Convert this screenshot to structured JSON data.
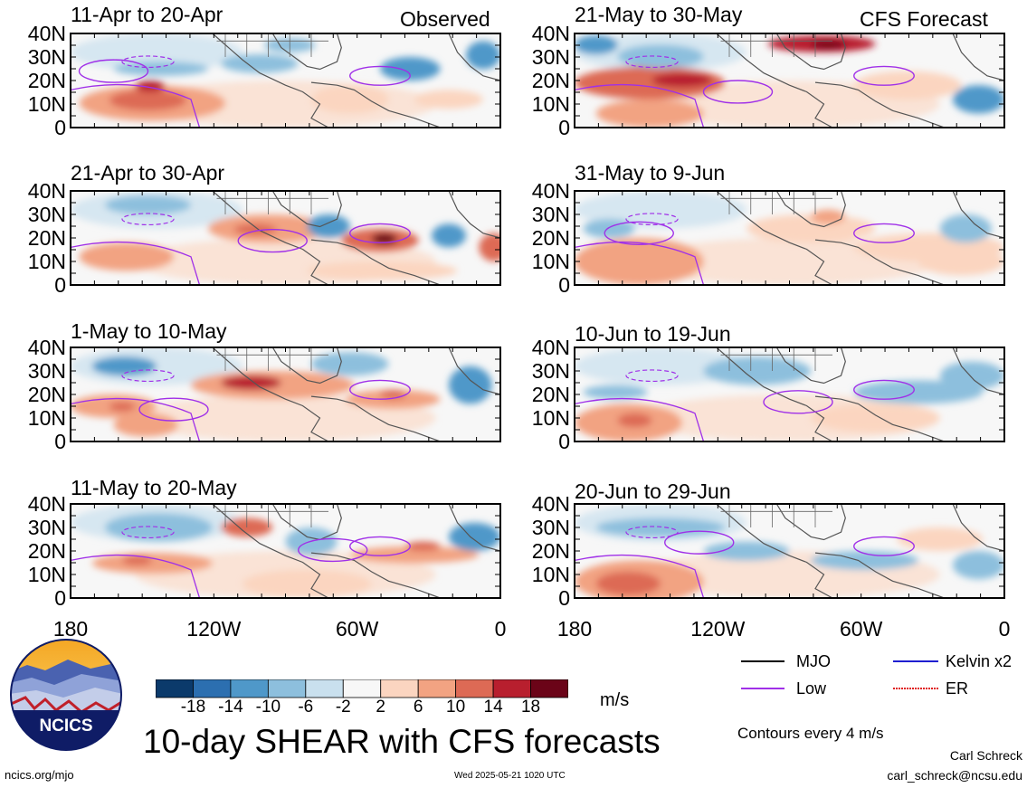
{
  "main_title": "10-day SHEAR with CFS forecasts",
  "column_labels": {
    "observed": "Observed",
    "forecast": "CFS Forecast"
  },
  "panels_observed": [
    {
      "title": "11-Apr to 20-Apr"
    },
    {
      "title": "21-Apr to 30-Apr"
    },
    {
      "title": "1-May to 10-May"
    },
    {
      "title": "11-May to 20-May"
    }
  ],
  "panels_forecast": [
    {
      "title": "21-May to 30-May"
    },
    {
      "title": "31-May to 9-Jun"
    },
    {
      "title": "10-Jun to 19-Jun"
    },
    {
      "title": "20-Jun to 29-Jun"
    }
  ],
  "y_ticks": [
    "40N",
    "30N",
    "20N",
    "10N",
    "0"
  ],
  "x_ticks": [
    "180",
    "120W",
    "60W",
    "0"
  ],
  "colorbar": {
    "labels": [
      "-18",
      "-14",
      "-10",
      "-6",
      "-2",
      "2",
      "6",
      "10",
      "14",
      "18"
    ],
    "unit": "m/s",
    "colors": [
      "#0b3a6b",
      "#2c6fb0",
      "#4f98c9",
      "#8dbfdd",
      "#c9e0ee",
      "#f7f7f7",
      "#fbd5c0",
      "#f2a382",
      "#dd6a55",
      "#b81f2e",
      "#6b0418"
    ]
  },
  "legend": {
    "mjo": "MJO",
    "kelvin": "Kelvin x2",
    "low": "Low",
    "er": "ER",
    "contours": "Contours every 4 m/s",
    "colors": {
      "mjo": "#000000",
      "kelvin": "#1f1fd0",
      "low": "#a030e8",
      "er": "#e02020"
    }
  },
  "logo": {
    "text": "NCICS"
  },
  "footer": {
    "url": "ncics.org/mjo",
    "timestamp": "Wed 2025-05-21 1020 UTC",
    "author": "Carl Schreck",
    "email": "carl_schreck@ncsu.edu"
  }
}
